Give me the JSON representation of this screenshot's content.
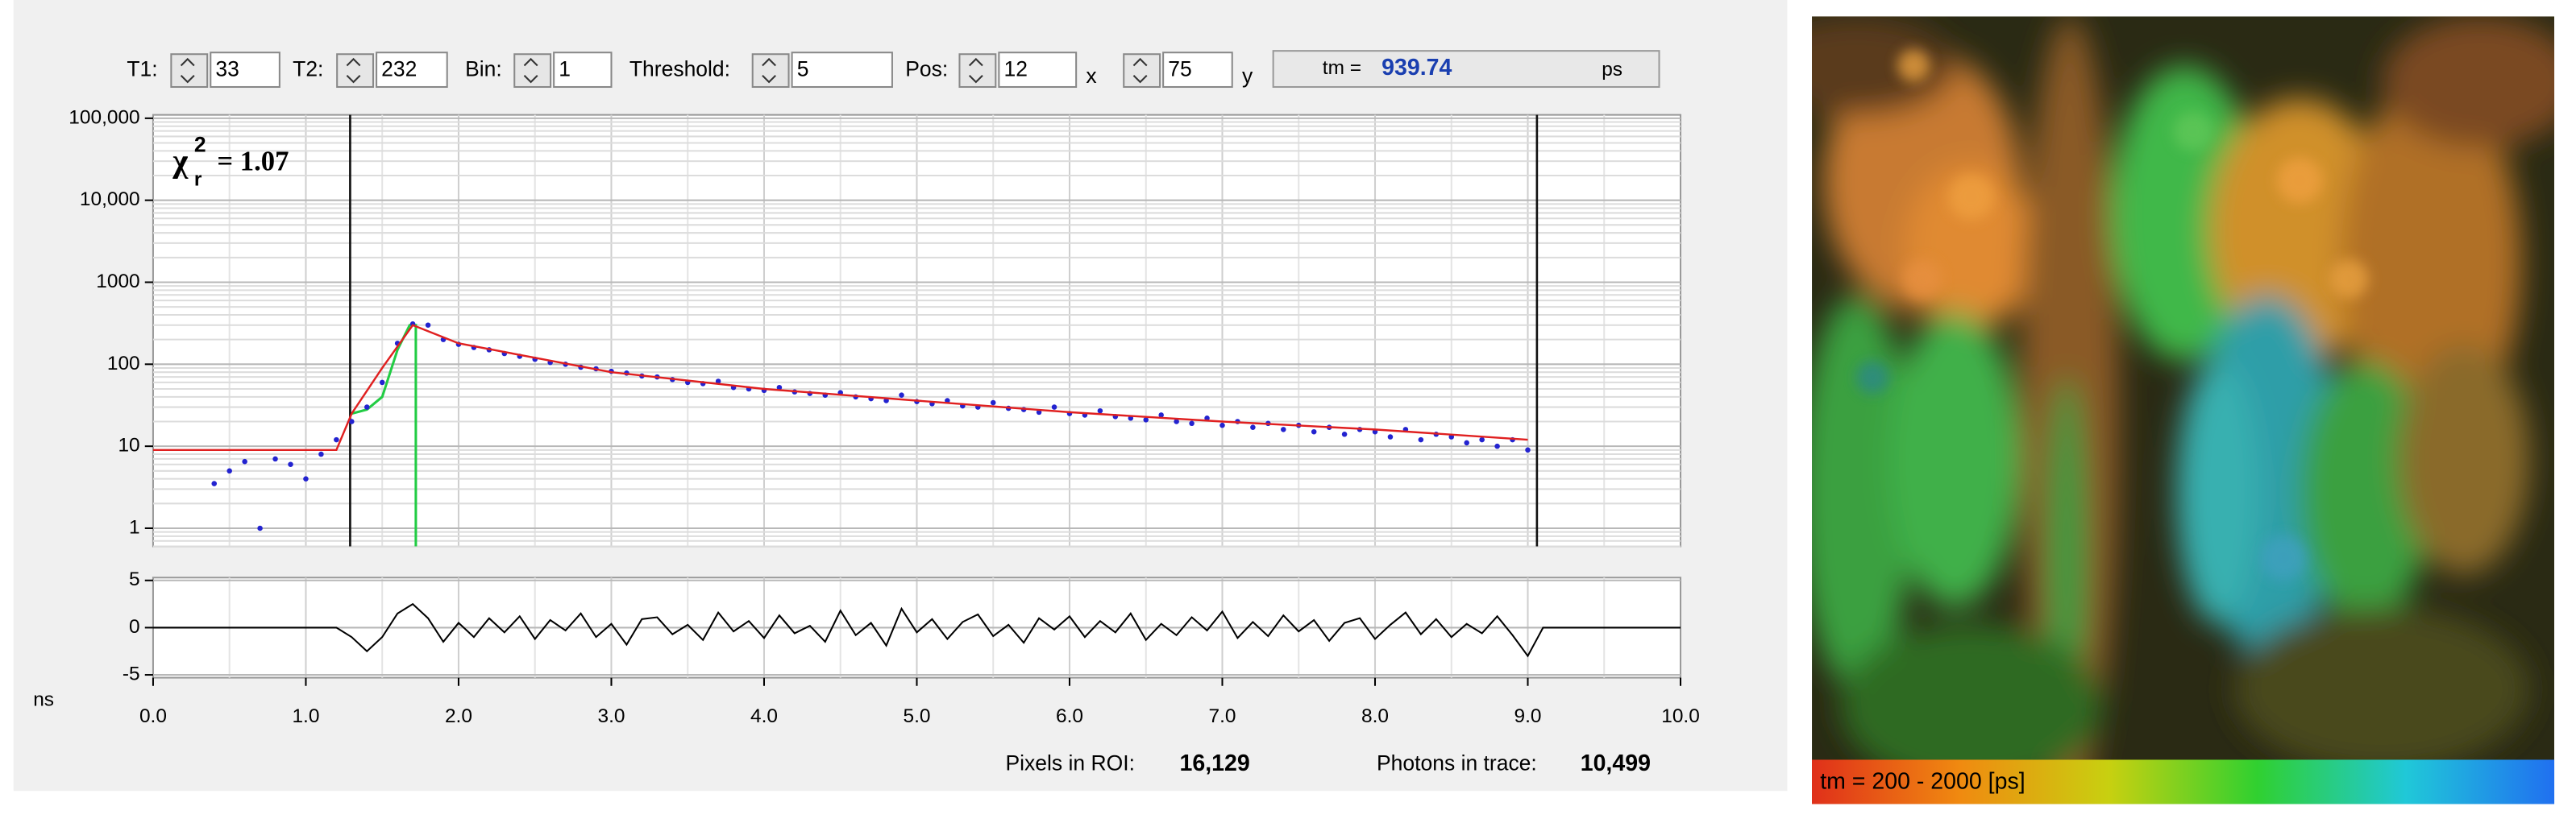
{
  "controls": {
    "t1_label": "T1:",
    "t1": "33",
    "t2_label": "T2:",
    "t2": "232",
    "bin_label": "Bin:",
    "bin": "1",
    "threshold_label": "Threshold:",
    "threshold": "5",
    "pos_label": "Pos:",
    "pos_x": "12",
    "x_label": "x",
    "pos_y": "75",
    "y_label": "y",
    "tm_label": "tm =",
    "tm_value": "939.74",
    "tm_unit": "ps"
  },
  "chart_data": [
    {
      "type": "scatter",
      "x": [
        0.4,
        0.5,
        0.6,
        0.7,
        0.8,
        0.9,
        1.0,
        1.1,
        1.2,
        1.3,
        1.4,
        1.5,
        1.6,
        1.7,
        1.8,
        1.9,
        2.0,
        2.1,
        2.2,
        2.3,
        2.4,
        2.5,
        2.6,
        2.7,
        2.8,
        2.9,
        3.0,
        3.1,
        3.2,
        3.3,
        3.4,
        3.5,
        3.6,
        3.7,
        3.8,
        3.9,
        4.0,
        4.1,
        4.2,
        4.3,
        4.4,
        4.5,
        4.6,
        4.7,
        4.8,
        4.9,
        5.0,
        5.1,
        5.2,
        5.3,
        5.4,
        5.5,
        5.6,
        5.7,
        5.8,
        5.9,
        6.0,
        6.1,
        6.2,
        6.3,
        6.4,
        6.5,
        6.6,
        6.7,
        6.8,
        6.9,
        7.0,
        7.1,
        7.2,
        7.3,
        7.4,
        7.5,
        7.6,
        7.7,
        7.8,
        7.9,
        8.0,
        8.1,
        8.2,
        8.3,
        8.4,
        8.5,
        8.6,
        8.7,
        8.8,
        8.9,
        9.0
      ],
      "values": [
        3.5,
        5,
        6.5,
        1,
        7,
        6,
        4,
        8,
        12,
        20,
        30,
        60,
        180,
        310,
        300,
        200,
        175,
        160,
        150,
        135,
        125,
        115,
        105,
        100,
        92,
        88,
        82,
        78,
        72,
        70,
        65,
        60,
        58,
        62,
        52,
        50,
        48,
        52,
        46,
        44,
        42,
        45,
        40,
        38,
        36,
        42,
        35,
        33,
        36,
        31,
        30,
        34,
        29,
        28,
        26,
        30,
        25,
        24,
        27,
        23,
        22,
        21,
        24,
        20,
        19,
        22,
        18,
        20,
        17,
        19,
        16,
        18,
        15,
        17,
        14,
        16,
        15,
        13,
        16,
        12,
        14,
        13,
        11,
        12,
        10,
        12,
        9
      ],
      "color": "#2323d0",
      "fit": {
        "x": [
          0,
          1.2,
          1.3,
          1.5,
          1.7,
          2.0,
          3.0,
          4.0,
          5.0,
          6.0,
          7.0,
          8.0,
          9.0
        ],
        "values": [
          9,
          9,
          25,
          90,
          300,
          180,
          80,
          50,
          36,
          26,
          20,
          16,
          12
        ],
        "color": "#e02020"
      },
      "irf": {
        "x": [
          1.3,
          1.4,
          1.5,
          1.6,
          1.68,
          1.72,
          1.72
        ],
        "values": [
          25,
          28,
          40,
          150,
          300,
          300,
          0.6
        ],
        "color": "#22cc44"
      },
      "cursors": [
        1.29,
        9.06
      ],
      "xlim": [
        0,
        10
      ],
      "ylim": [
        0.6,
        110000
      ],
      "log_y": true,
      "yticks": [
        1,
        10,
        100,
        1000,
        {
          "value": 10000,
          "label": "10,000"
        },
        {
          "value": 100000,
          "label": "100,000"
        }
      ],
      "grid": true,
      "annotation_symbol": "χ",
      "annotation_subscript": "r",
      "annotation_superscript": "2",
      "annotation_text": "=  1.07"
    },
    {
      "type": "line",
      "x": [
        0,
        0.1,
        0.2,
        0.3,
        0.4,
        0.5,
        0.6,
        0.7,
        0.8,
        0.9,
        1.0,
        1.1,
        1.2,
        1.3,
        1.4,
        1.5,
        1.6,
        1.7,
        1.8,
        1.9,
        2.0,
        2.1,
        2.2,
        2.3,
        2.4,
        2.5,
        2.6,
        2.7,
        2.8,
        2.9,
        3.0,
        3.1,
        3.2,
        3.3,
        3.4,
        3.5,
        3.6,
        3.7,
        3.8,
        3.9,
        4.0,
        4.1,
        4.2,
        4.3,
        4.4,
        4.5,
        4.6,
        4.7,
        4.8,
        4.9,
        5.0,
        5.1,
        5.2,
        5.3,
        5.4,
        5.5,
        5.6,
        5.7,
        5.8,
        5.9,
        6.0,
        6.1,
        6.2,
        6.3,
        6.4,
        6.5,
        6.6,
        6.7,
        6.8,
        6.9,
        7.0,
        7.1,
        7.2,
        7.3,
        7.4,
        7.5,
        7.6,
        7.7,
        7.8,
        7.9,
        8.0,
        8.1,
        8.2,
        8.3,
        8.4,
        8.5,
        8.6,
        8.7,
        8.8,
        8.9,
        9.0,
        9.1,
        9.2,
        9.3,
        9.4,
        9.5,
        9.6,
        9.7,
        9.8,
        9.9,
        10.0
      ],
      "values": [
        0,
        0,
        0,
        0,
        0,
        0,
        0,
        0,
        0,
        0,
        0,
        0,
        0,
        -1,
        -2.5,
        -1,
        1.5,
        2.5,
        1,
        -1.5,
        0.5,
        -1,
        1,
        -0.5,
        1.2,
        -1.2,
        0.8,
        -0.3,
        1.5,
        -1,
        0.4,
        -1.8,
        0.9,
        1.1,
        -0.7,
        0.3,
        -1.3,
        1.6,
        -0.4,
        0.7,
        -1.1,
        1.3,
        -0.6,
        0.2,
        -1.5,
        1.8,
        -0.8,
        0.5,
        -1.9,
        2,
        -0.5,
        0.9,
        -1.2,
        0.6,
        1.4,
        -0.9,
        0.3,
        -1.6,
        1,
        -0.2,
        1.2,
        -1,
        0.7,
        -0.5,
        1.5,
        -1.3,
        0.4,
        -0.8,
        1.1,
        -0.3,
        1.7,
        -1.1,
        0.6,
        -0.9,
        1.3,
        -0.4,
        0.8,
        -1.4,
        0.5,
        1,
        -1.2,
        0.3,
        1.6,
        -0.7,
        0.9,
        -1,
        0.4,
        -0.6,
        1.2,
        -0.8,
        -3,
        0,
        0,
        0,
        0,
        0,
        0,
        0,
        0,
        0,
        0
      ],
      "color": "#000000",
      "xlim": [
        0,
        10
      ],
      "ylim": [
        -5.3,
        5.3
      ],
      "yticks": [
        5,
        0,
        -5
      ],
      "xticks": [
        {
          "value": 0,
          "label": "0.0"
        },
        {
          "value": 1,
          "label": "1.0"
        },
        {
          "value": 2,
          "label": "2.0"
        },
        {
          "value": 3,
          "label": "3.0"
        },
        {
          "value": 4,
          "label": "4.0"
        },
        {
          "value": 5,
          "label": "5.0"
        },
        {
          "value": 6,
          "label": "6.0"
        },
        {
          "value": 7,
          "label": "7.0"
        },
        {
          "value": 8,
          "label": "8.0"
        },
        {
          "value": 9,
          "label": "9.0"
        },
        {
          "value": 10,
          "label": "10.0"
        }
      ],
      "xlabel": "ns",
      "grid": true
    }
  ],
  "stats": {
    "pixels_label": "Pixels in ROI:",
    "pixels": "16,129",
    "photons_label": "Photons in trace:",
    "photons": "10,499"
  },
  "image": {
    "caption": "tm = 200 - 2000 [ps]"
  }
}
